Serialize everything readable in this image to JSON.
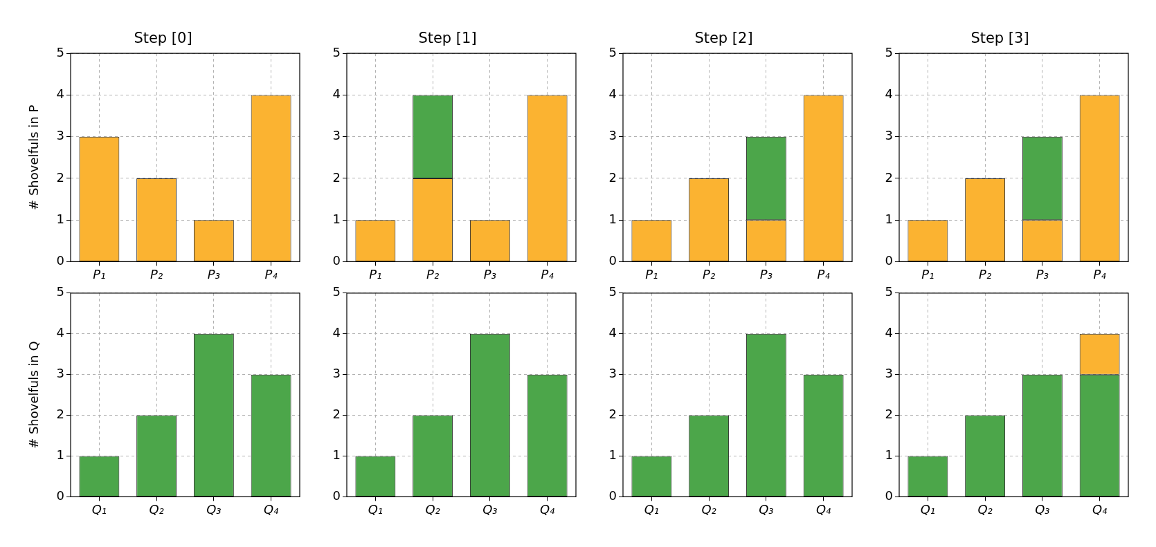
{
  "chart_data": [
    {
      "type": "bar",
      "title": "Step [0]",
      "ylabel": "# Shovelfuls in P",
      "categories": [
        "P₁",
        "P₂",
        "P₃",
        "P₄"
      ],
      "stacked": true,
      "ylim": [
        0,
        5
      ],
      "yticks": [
        0,
        1,
        2,
        3,
        4,
        5
      ],
      "grid": true,
      "legend": false,
      "series": [
        {
          "color": "#fbb331",
          "values": [
            3,
            2,
            1,
            4
          ]
        }
      ]
    },
    {
      "type": "bar",
      "title": "Step [1]",
      "categories": [
        "P₁",
        "P₂",
        "P₃",
        "P₄"
      ],
      "stacked": true,
      "ylim": [
        0,
        5
      ],
      "yticks": [
        0,
        1,
        2,
        3,
        4,
        5
      ],
      "grid": true,
      "legend": false,
      "series": [
        {
          "color": "#fbb331",
          "values": [
            1,
            2,
            1,
            4
          ]
        },
        {
          "color": "#4ca64a",
          "values": [
            null,
            2,
            null,
            null
          ]
        }
      ]
    },
    {
      "type": "bar",
      "title": "Step [2]",
      "categories": [
        "P₁",
        "P₂",
        "P₃",
        "P₄"
      ],
      "stacked": true,
      "ylim": [
        0,
        5
      ],
      "yticks": [
        0,
        1,
        2,
        3,
        4,
        5
      ],
      "grid": true,
      "legend": false,
      "series": [
        {
          "color": "#fbb331",
          "values": [
            1,
            2,
            1,
            4
          ]
        },
        {
          "color": "#4ca64a",
          "values": [
            null,
            null,
            2,
            null
          ]
        }
      ]
    },
    {
      "type": "bar",
      "title": "Step [3]",
      "categories": [
        "P₁",
        "P₂",
        "P₃",
        "P₄"
      ],
      "stacked": true,
      "ylim": [
        0,
        5
      ],
      "yticks": [
        0,
        1,
        2,
        3,
        4,
        5
      ],
      "grid": true,
      "legend": false,
      "series": [
        {
          "color": "#fbb331",
          "values": [
            1,
            2,
            1,
            4
          ]
        },
        {
          "color": "#4ca64a",
          "values": [
            null,
            null,
            2,
            null
          ]
        }
      ]
    },
    {
      "type": "bar",
      "ylabel": "# Shovelfuls in Q",
      "categories": [
        "Q₁",
        "Q₂",
        "Q₃",
        "Q₄"
      ],
      "stacked": true,
      "ylim": [
        0,
        5
      ],
      "yticks": [
        0,
        1,
        2,
        3,
        4,
        5
      ],
      "grid": true,
      "legend": false,
      "series": [
        {
          "color": "#4ca64a",
          "values": [
            1,
            2,
            4,
            3
          ]
        }
      ]
    },
    {
      "type": "bar",
      "categories": [
        "Q₁",
        "Q₂",
        "Q₃",
        "Q₄"
      ],
      "stacked": true,
      "ylim": [
        0,
        5
      ],
      "yticks": [
        0,
        1,
        2,
        3,
        4,
        5
      ],
      "grid": true,
      "legend": false,
      "series": [
        {
          "color": "#4ca64a",
          "values": [
            1,
            2,
            4,
            3
          ]
        }
      ]
    },
    {
      "type": "bar",
      "categories": [
        "Q₁",
        "Q₂",
        "Q₃",
        "Q₄"
      ],
      "stacked": true,
      "ylim": [
        0,
        5
      ],
      "yticks": [
        0,
        1,
        2,
        3,
        4,
        5
      ],
      "grid": true,
      "legend": false,
      "series": [
        {
          "color": "#4ca64a",
          "values": [
            1,
            2,
            4,
            3
          ]
        }
      ]
    },
    {
      "type": "bar",
      "categories": [
        "Q₁",
        "Q₂",
        "Q₃",
        "Q₄"
      ],
      "stacked": true,
      "ylim": [
        0,
        5
      ],
      "yticks": [
        0,
        1,
        2,
        3,
        4,
        5
      ],
      "grid": true,
      "legend": false,
      "series": [
        {
          "color": "#4ca64a",
          "values": [
            1,
            2,
            3,
            3
          ]
        },
        {
          "color": "#fbb331",
          "values": [
            null,
            null,
            null,
            1
          ]
        }
      ]
    }
  ]
}
